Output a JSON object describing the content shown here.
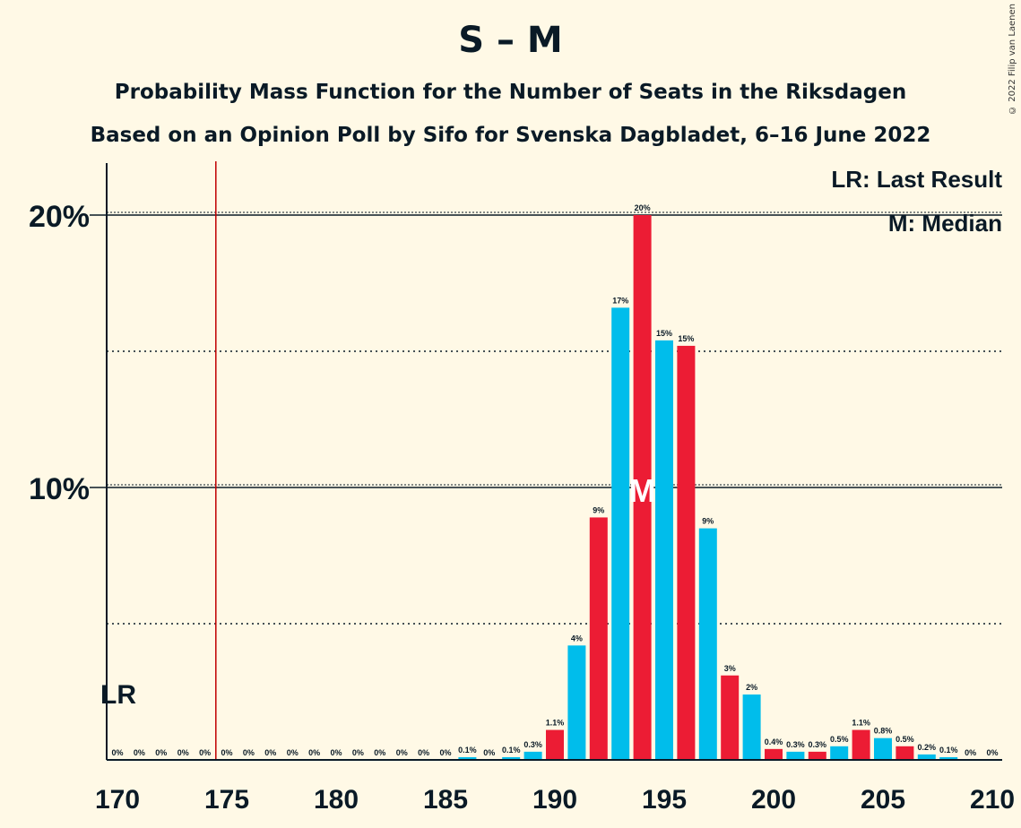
{
  "title": "S – M",
  "subtitle": "Probability Mass Function for the Number of Seats in the Riksdagen",
  "subtitle2": "Based on an Opinion Poll by Sifo for Svenska Dagbladet, 6–16 June 2022",
  "copyright": "© 2022 Filip van Laenen",
  "legend": {
    "lr": "LR: Last Result",
    "median": "M: Median"
  },
  "markers": {
    "lr_label": "LR",
    "median_label": "M"
  },
  "colors": {
    "background": "#fff9e6",
    "s_color": "#ec1c34",
    "m_color": "#00bdeb",
    "lr_line": "#c00000",
    "text": "#0a1a26"
  },
  "chart_data": {
    "type": "bar",
    "x": [
      170,
      171,
      172,
      173,
      174,
      175,
      176,
      177,
      178,
      179,
      180,
      181,
      182,
      183,
      184,
      185,
      186,
      187,
      188,
      189,
      190,
      191,
      192,
      193,
      194,
      195,
      196,
      197,
      198,
      199,
      200,
      201,
      202,
      203,
      204,
      205,
      206,
      207,
      208,
      209,
      210
    ],
    "values": [
      0,
      0,
      0,
      0,
      0,
      0,
      0,
      0,
      0,
      0,
      0,
      0,
      0,
      0,
      0,
      0,
      0.1,
      0,
      0.1,
      0.3,
      1.1,
      4.2,
      8.9,
      16.6,
      20.0,
      15.4,
      15.2,
      8.5,
      3.1,
      2.4,
      0.4,
      0.3,
      0.3,
      0.5,
      1.1,
      0.8,
      0.5,
      0.2,
      0.1,
      0,
      0
    ],
    "labels": [
      "0%",
      "0%",
      "0%",
      "0%",
      "0%",
      "0%",
      "0%",
      "0%",
      "0%",
      "0%",
      "0%",
      "0%",
      "0%",
      "0%",
      "0%",
      "0%",
      "0.1%",
      "0%",
      "0.1%",
      "0.3%",
      "1.1%",
      "4%",
      "9%",
      "17%",
      "20%",
      "15%",
      "15%",
      "9%",
      "3%",
      "2%",
      "0.4%",
      "0.3%",
      "0.3%",
      "0.5%",
      "1.1%",
      "0.8%",
      "0.5%",
      "0.2%",
      "0.1%",
      "0%",
      "0%"
    ],
    "colors": [
      "m",
      "m",
      "m",
      "m",
      "m",
      "m",
      "m",
      "m",
      "m",
      "m",
      "m",
      "m",
      "m",
      "m",
      "m",
      "m",
      "m",
      "m",
      "m",
      "m",
      "s",
      "m",
      "s",
      "m",
      "s",
      "m",
      "s",
      "m",
      "s",
      "m",
      "s",
      "m",
      "s",
      "m",
      "s",
      "m",
      "s",
      "m",
      "m",
      "m",
      "m"
    ],
    "xticks": [
      170,
      175,
      180,
      185,
      190,
      195,
      200,
      205,
      210
    ],
    "xtick_labels": [
      "170",
      "175",
      "180",
      "185",
      "190",
      "195",
      "200",
      "205",
      "210"
    ],
    "yticks": [
      10,
      20
    ],
    "ytick_labels": [
      "10%",
      "20%"
    ],
    "ygrid_dotted": [
      5,
      15
    ],
    "ylim": [
      0,
      22
    ],
    "xlim": [
      170,
      210
    ],
    "last_result": 175,
    "median": 194,
    "xlabel": "",
    "ylabel": ""
  }
}
